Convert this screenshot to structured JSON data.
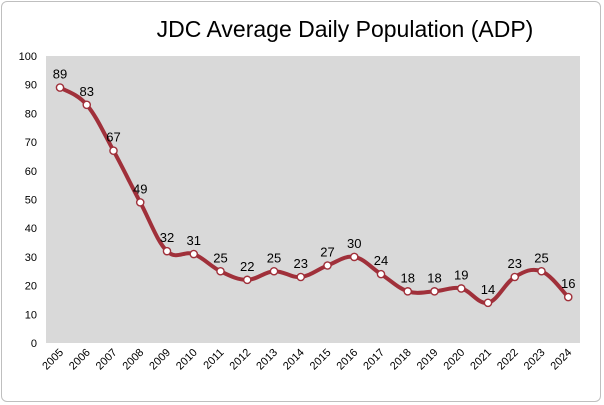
{
  "chart_data": {
    "type": "line",
    "title": "JDC Average Daily Population (ADP)",
    "xlabel": "",
    "ylabel": "",
    "x": [
      "2005",
      "2006",
      "2007",
      "2008",
      "2009",
      "2010",
      "2011",
      "2012",
      "2013",
      "2014",
      "2015",
      "2016",
      "2017",
      "2018",
      "2019",
      "2020",
      "2021",
      "2022",
      "2023",
      "2024"
    ],
    "series": [
      {
        "values": [
          89,
          83,
          67,
          49,
          32,
          31,
          25,
          22,
          25,
          23,
          27,
          30,
          24,
          18,
          18,
          19,
          14,
          23,
          25,
          16
        ]
      }
    ],
    "ylim": [
      0,
      100
    ],
    "yticks": [
      0,
      10,
      20,
      30,
      40,
      50,
      60,
      70,
      80,
      90,
      100
    ],
    "grid": false,
    "legend": "none",
    "colors": {
      "line": "#a0303a",
      "plot_bg": "#d9d9d9",
      "marker_fill": "#ffffff"
    }
  }
}
